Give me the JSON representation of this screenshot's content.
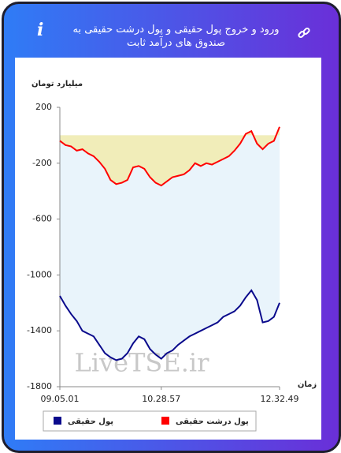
{
  "header": {
    "title": "ورود و خروج پول حقیقی و پول درشت حقیقی به صندوق های درآمد ثابت"
  },
  "watermark": "LiveTSE.ir",
  "chart_data": {
    "type": "area-line",
    "y_label": "میلیارد تومان",
    "x_label": "زمان",
    "categories": [
      "09.05.01",
      null,
      null,
      null,
      null,
      null,
      null,
      null,
      null,
      null,
      null,
      null,
      null,
      null,
      null,
      null,
      null,
      null,
      "10.28.57",
      null,
      null,
      null,
      null,
      null,
      null,
      null,
      null,
      null,
      null,
      null,
      null,
      null,
      null,
      null,
      null,
      null,
      null,
      null,
      null,
      "12.32.49"
    ],
    "series": [
      {
        "name": "پول حقیقی",
        "color": "#0a0a8c",
        "fill": "#e9f4fb",
        "values": [
          -1150,
          -1220,
          -1280,
          -1330,
          -1400,
          -1420,
          -1440,
          -1500,
          -1560,
          -1590,
          -1610,
          -1600,
          -1560,
          -1490,
          -1440,
          -1460,
          -1530,
          -1570,
          -1600,
          -1560,
          -1540,
          -1500,
          -1470,
          -1440,
          -1420,
          -1400,
          -1380,
          -1360,
          -1340,
          -1300,
          -1280,
          -1260,
          -1220,
          -1160,
          -1110,
          -1180,
          -1340,
          -1330,
          -1300,
          -1200
        ]
      },
      {
        "name": "پول درشت حقیقی",
        "color": "#ff0000",
        "fill": "#f1edb9",
        "values": [
          -40,
          -70,
          -80,
          -110,
          -100,
          -130,
          -150,
          -190,
          -240,
          -320,
          -350,
          -340,
          -320,
          -230,
          -220,
          -240,
          -300,
          -340,
          -360,
          -330,
          -300,
          -290,
          -280,
          -250,
          -200,
          -220,
          -200,
          -210,
          -190,
          -170,
          -150,
          -110,
          -60,
          10,
          30,
          -60,
          -100,
          -60,
          -40,
          60
        ]
      }
    ],
    "ylim": [
      -1800,
      200
    ],
    "yticks": [
      200,
      -200,
      -600,
      -1000,
      -1400,
      -1800
    ],
    "grid": false,
    "legend": "bottom"
  }
}
